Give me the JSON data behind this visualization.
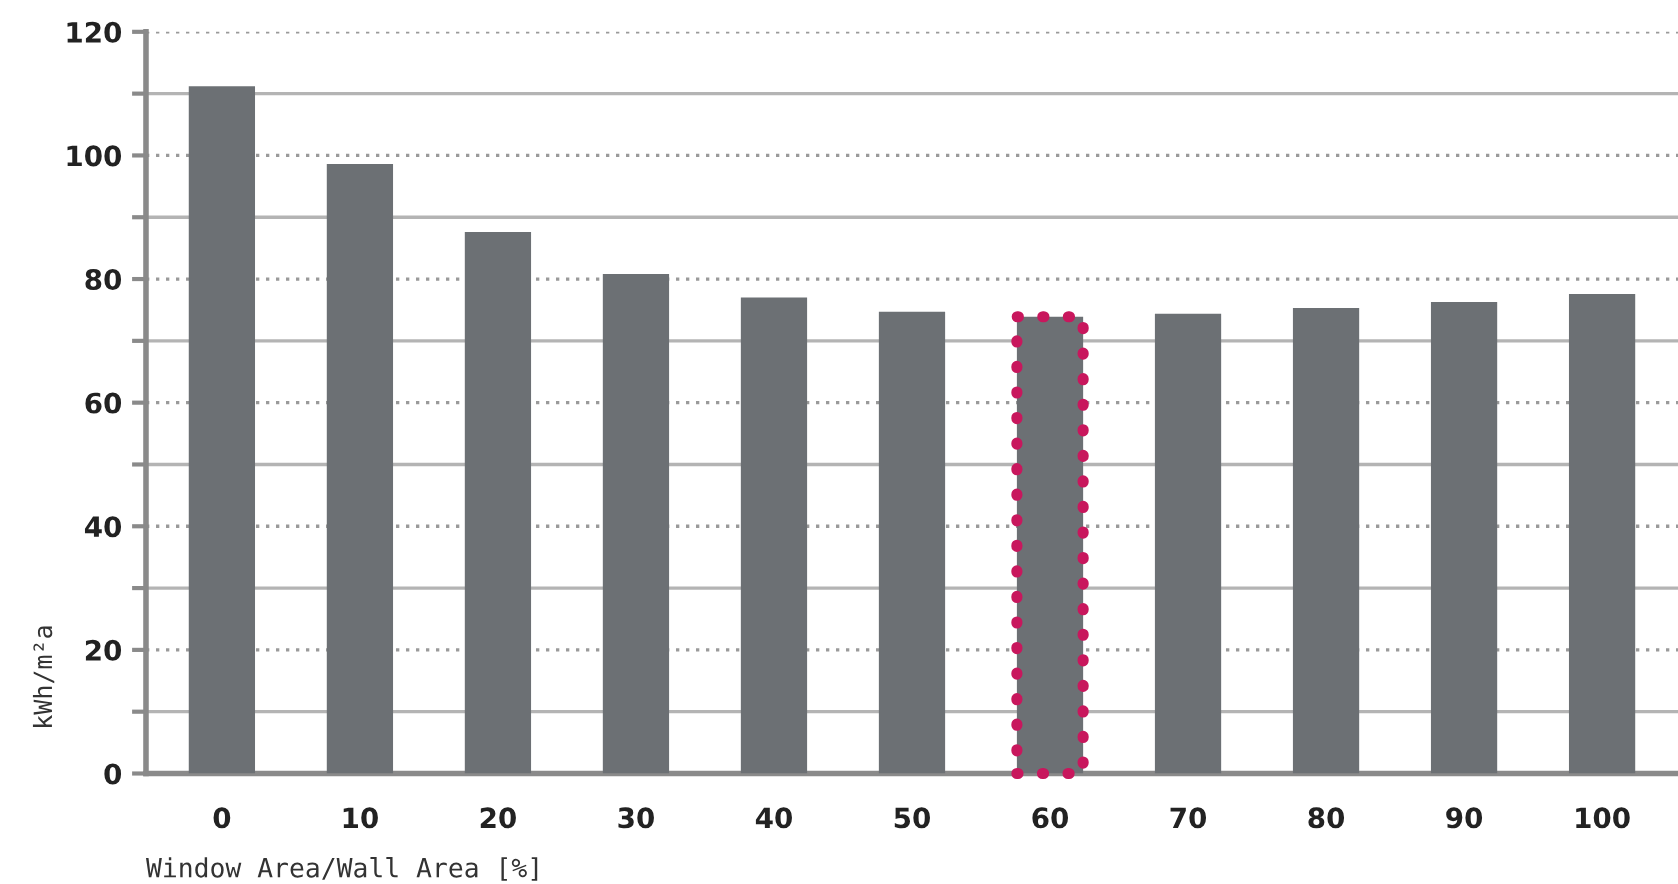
{
  "chart_data": {
    "type": "bar",
    "xlabel": "Window Area/Wall Area [%]",
    "ylabel": "kWh/m²a",
    "categories": [
      "0",
      "10",
      "20",
      "30",
      "40",
      "50",
      "60",
      "70",
      "80",
      "90",
      "100"
    ],
    "values": [
      111.2,
      98.6,
      87.6,
      80.8,
      77.0,
      74.7,
      73.9,
      74.4,
      75.3,
      76.3,
      77.6
    ],
    "color": "#6c7074",
    "ylim": [
      0,
      120
    ],
    "yticks": [
      0,
      {
        "value": 10,
        "label": null
      },
      20,
      {
        "value": 30,
        "label": null
      },
      40,
      {
        "value": 50,
        "label": null
      },
      60,
      {
        "value": 70,
        "label": null
      },
      80,
      {
        "value": 90,
        "label": null
      },
      100,
      {
        "value": 110,
        "label": null
      },
      120
    ],
    "grid": "y"
  }
}
